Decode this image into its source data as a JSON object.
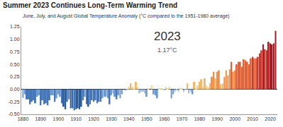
{
  "chart_data": {
    "type": "bar",
    "title": "Summer 2023 Continues Long-Term Warming Trend",
    "subtitle": "June, July, and August Global Temperature Anomaly (°C compared to the 1951-1980 average)",
    "annotations": [
      "2023",
      "1.17°C"
    ],
    "x": [
      1880,
      1881,
      1882,
      1883,
      1884,
      1885,
      1886,
      1887,
      1888,
      1889,
      1890,
      1891,
      1892,
      1893,
      1894,
      1895,
      1896,
      1897,
      1898,
      1899,
      1900,
      1901,
      1902,
      1903,
      1904,
      1905,
      1906,
      1907,
      1908,
      1909,
      1910,
      1911,
      1912,
      1913,
      1914,
      1915,
      1916,
      1917,
      1918,
      1919,
      1920,
      1921,
      1922,
      1923,
      1924,
      1925,
      1926,
      1927,
      1928,
      1929,
      1930,
      1931,
      1932,
      1933,
      1934,
      1935,
      1936,
      1937,
      1938,
      1939,
      1940,
      1941,
      1942,
      1943,
      1944,
      1945,
      1946,
      1947,
      1948,
      1949,
      1950,
      1951,
      1952,
      1953,
      1954,
      1955,
      1956,
      1957,
      1958,
      1959,
      1960,
      1961,
      1962,
      1963,
      1964,
      1965,
      1966,
      1967,
      1968,
      1969,
      1970,
      1971,
      1972,
      1973,
      1974,
      1975,
      1976,
      1977,
      1978,
      1979,
      1980,
      1981,
      1982,
      1983,
      1984,
      1985,
      1986,
      1987,
      1988,
      1989,
      1990,
      1991,
      1992,
      1993,
      1994,
      1995,
      1996,
      1997,
      1998,
      1999,
      2000,
      2001,
      2002,
      2003,
      2004,
      2005,
      2006,
      2007,
      2008,
      2009,
      2010,
      2011,
      2012,
      2013,
      2014,
      2015,
      2016,
      2017,
      2018,
      2019,
      2020,
      2021,
      2022,
      2023
    ],
    "values": [
      -0.17,
      -0.1,
      -0.2,
      -0.2,
      -0.3,
      -0.25,
      -0.22,
      -0.28,
      -0.15,
      -0.12,
      -0.32,
      -0.22,
      -0.3,
      -0.28,
      -0.32,
      -0.22,
      -0.12,
      -0.12,
      -0.25,
      -0.18,
      -0.1,
      -0.15,
      -0.28,
      -0.35,
      -0.4,
      -0.25,
      -0.2,
      -0.38,
      -0.38,
      -0.42,
      -0.4,
      -0.38,
      -0.4,
      -0.35,
      -0.22,
      -0.15,
      -0.3,
      -0.35,
      -0.3,
      -0.22,
      -0.25,
      -0.22,
      -0.28,
      -0.25,
      -0.25,
      -0.18,
      -0.15,
      -0.15,
      -0.18,
      -0.3,
      -0.12,
      -0.08,
      -0.15,
      -0.2,
      -0.12,
      -0.18,
      -0.1,
      0.0,
      -0.03,
      -0.02,
      0.05,
      0.12,
      0.05,
      0.02,
      0.15,
      0.05,
      -0.08,
      -0.05,
      -0.05,
      -0.08,
      -0.15,
      0.02,
      0.0,
      0.08,
      -0.1,
      -0.12,
      -0.18,
      0.02,
      0.02,
      0.02,
      -0.02,
      0.05,
      0.02,
      0.05,
      -0.18,
      -0.1,
      -0.05,
      -0.02,
      -0.05,
      0.02,
      0.02,
      -0.05,
      -0.02,
      0.12,
      -0.08,
      -0.05,
      -0.1,
      0.15,
      0.02,
      0.08,
      0.15,
      0.2,
      0.05,
      0.22,
      0.08,
      0.05,
      0.12,
      0.25,
      0.35,
      0.22,
      0.35,
      0.38,
      0.1,
      0.12,
      0.25,
      0.38,
      0.28,
      0.4,
      0.55,
      0.35,
      0.38,
      0.5,
      0.55,
      0.55,
      0.45,
      0.6,
      0.58,
      0.55,
      0.5,
      0.62,
      0.65,
      0.62,
      0.62,
      0.65,
      0.72,
      0.78,
      0.9,
      0.8,
      0.78,
      0.95,
      0.92,
      0.9,
      0.92,
      1.17
    ],
    "colors": [
      "#6d9ad0",
      "#6d9ad0",
      "#4677b8",
      "#4677b8",
      "#4677b8",
      "#4677b8",
      "#4677b8",
      "#4677b8",
      "#6d9ad0",
      "#6d9ad0",
      "#4677b8",
      "#4677b8",
      "#4677b8",
      "#4677b8",
      "#4677b8",
      "#4677b8",
      "#6d9ad0",
      "#6d9ad0",
      "#4677b8",
      "#6d9ad0",
      "#6d9ad0",
      "#6d9ad0",
      "#4677b8",
      "#2b5c9c",
      "#2b5c9c",
      "#4677b8",
      "#4677b8",
      "#2b5c9c",
      "#2b5c9c",
      "#2b5c9c",
      "#2b5c9c",
      "#2b5c9c",
      "#2b5c9c",
      "#2b5c9c",
      "#4677b8",
      "#6d9ad0",
      "#4677b8",
      "#2b5c9c",
      "#4677b8",
      "#4677b8",
      "#4677b8",
      "#4677b8",
      "#4677b8",
      "#4677b8",
      "#4677b8",
      "#6d9ad0",
      "#6d9ad0",
      "#6d9ad0",
      "#6d9ad0",
      "#4677b8",
      "#6d9ad0",
      "#a3c3e5",
      "#6d9ad0",
      "#4677b8",
      "#6d9ad0",
      "#6d9ad0",
      "#6d9ad0",
      "#f7d896",
      "#a3c3e5",
      "#a3c3e5",
      "#f7d896",
      "#f4b76c",
      "#f7d896",
      "#f7d896",
      "#f4b76c",
      "#f7d896",
      "#a3c3e5",
      "#a3c3e5",
      "#a3c3e5",
      "#a3c3e5",
      "#6d9ad0",
      "#f7d896",
      "#f7d896",
      "#f7d896",
      "#6d9ad0",
      "#6d9ad0",
      "#6d9ad0",
      "#f7d896",
      "#f7d896",
      "#f7d896",
      "#a3c3e5",
      "#f7d896",
      "#f7d896",
      "#f7d896",
      "#6d9ad0",
      "#6d9ad0",
      "#a3c3e5",
      "#a3c3e5",
      "#a3c3e5",
      "#f7d896",
      "#f7d896",
      "#a3c3e5",
      "#a3c3e5",
      "#f4b76c",
      "#a3c3e5",
      "#a3c3e5",
      "#6d9ad0",
      "#f4b76c",
      "#f7d896",
      "#f7d896",
      "#f4b76c",
      "#f4b76c",
      "#f7d896",
      "#f4b76c",
      "#f7d896",
      "#f7d896",
      "#f4b76c",
      "#ee8f4a",
      "#ee8f4a",
      "#f4b76c",
      "#ee8f4a",
      "#ee8f4a",
      "#f4b76c",
      "#f4b76c",
      "#ee8f4a",
      "#ee8f4a",
      "#ee8f4a",
      "#ee8f4a",
      "#e0643a",
      "#ee8f4a",
      "#ee8f4a",
      "#e0643a",
      "#e0643a",
      "#e0643a",
      "#e0643a",
      "#e0643a",
      "#e0643a",
      "#e0643a",
      "#e0643a",
      "#e0643a",
      "#c9392d",
      "#e0643a",
      "#e0643a",
      "#c9392d",
      "#c9392d",
      "#c9392d",
      "#a51d24",
      "#c9392d",
      "#c9392d",
      "#a51d24",
      "#a51d24",
      "#a51d24",
      "#a51d24",
      "#a51d24"
    ],
    "xlim": [
      1879,
      2024
    ],
    "xticks": [
      1880,
      1890,
      1900,
      1910,
      1920,
      1930,
      1940,
      1950,
      1960,
      1970,
      1980,
      1990,
      2000,
      2010,
      2020
    ],
    "ylim": [
      -0.5,
      1.25
    ],
    "yticks": [
      {
        "value": -0.5,
        "label": "-0.50"
      },
      {
        "value": -0.25,
        "label": "-0.25"
      },
      {
        "value": 0,
        "label": "0.00"
      },
      {
        "value": 0.25,
        "label": "0.25"
      },
      {
        "value": 0.5,
        "label": "0.50"
      },
      {
        "value": 0.75,
        "label": "0.75"
      },
      {
        "value": 1,
        "label": "1.00"
      },
      {
        "value": 1.25,
        "label": "1.25"
      }
    ],
    "grid": false
  }
}
